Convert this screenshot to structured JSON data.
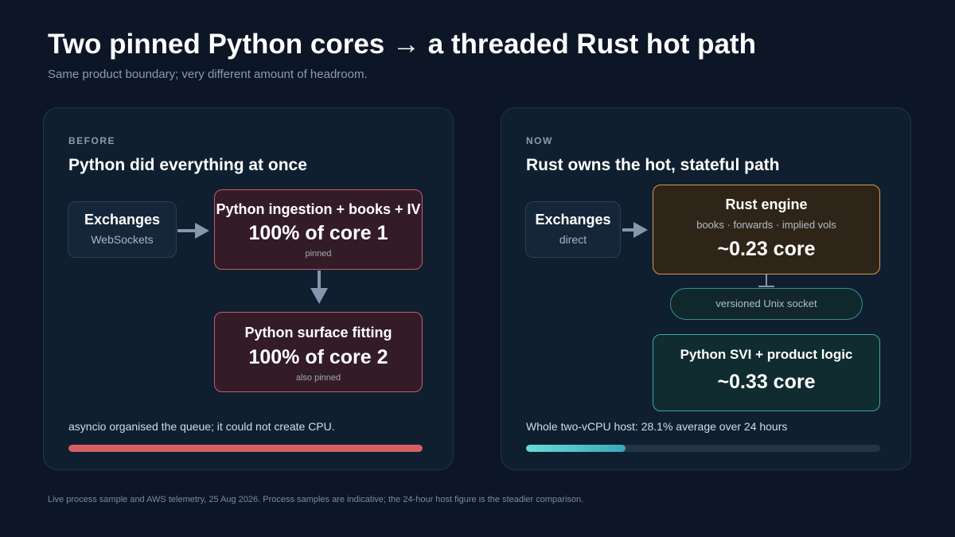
{
  "header": {
    "title": "Two pinned Python cores → a threaded Rust hot path",
    "subtitle": "Same product boundary; very different amount of headroom."
  },
  "before": {
    "kicker": "BEFORE",
    "title": "Python did everything at once",
    "exchanges": {
      "title": "Exchanges",
      "sub": "WebSockets"
    },
    "ingestion": {
      "title": "Python ingestion + books + IV",
      "value": "100% of core 1",
      "note": "pinned"
    },
    "fitting": {
      "title": "Python surface fitting",
      "value": "100% of core 2",
      "note": "also pinned"
    },
    "caption": "asyncio organised the queue; it could not create CPU.",
    "bar_fraction": 1.0
  },
  "now": {
    "kicker": "NOW",
    "title": "Rust owns the hot, stateful path",
    "exchanges": {
      "title": "Exchanges",
      "sub": "direct"
    },
    "rust": {
      "title": "Rust engine",
      "sub": "books · forwards · implied vols",
      "value": "~0.23 core"
    },
    "socket": "versioned Unix socket",
    "python": {
      "title": "Python SVI + product logic",
      "value": "~0.33 core"
    },
    "caption": "Whole two-vCPU host: 28.1% average over 24 hours",
    "bar_fraction": 0.281
  },
  "footer": "Live process sample and AWS telemetry, 25 Aug 2026. Process samples are indicative; the 24-hour host figure is the steadier comparison.",
  "colors": {
    "background": "#0c1626",
    "panel": "#0f1f2f",
    "python_red": "#c95a67",
    "rust_orange": "#d49a55",
    "teal": "#3fa7a0",
    "arrow": "#8597ad"
  }
}
